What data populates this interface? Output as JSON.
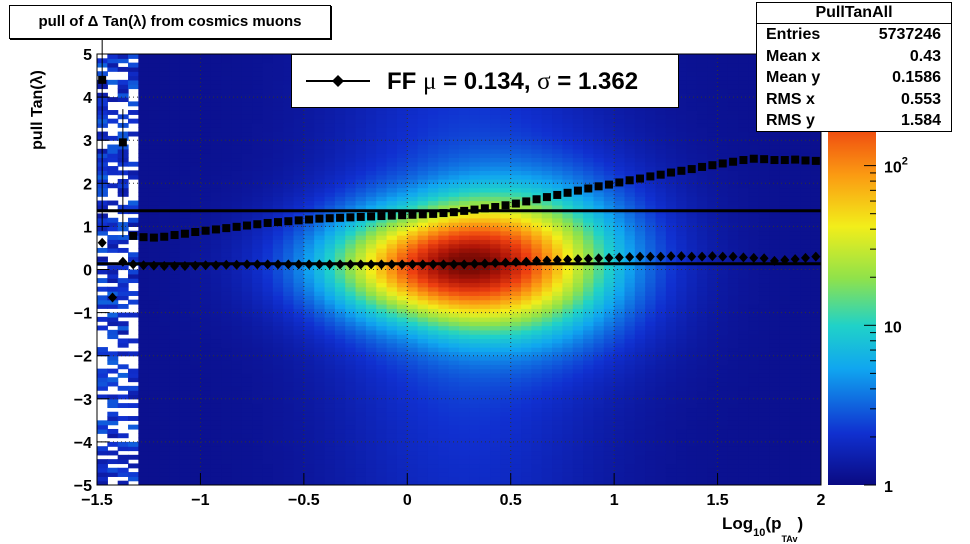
{
  "title": "pull of Δ Tan(λ) from cosmics muons",
  "stats": {
    "name": "PullTanAll",
    "rows": [
      {
        "label": "Entries",
        "value": "5737246"
      },
      {
        "label": "Mean x",
        "value": "0.43"
      },
      {
        "label": "Mean y",
        "value": "0.1586"
      },
      {
        "label": "RMS x",
        "value": "0.553"
      },
      {
        "label": "RMS y",
        "value": "1.584"
      }
    ]
  },
  "legend": {
    "prefix": "FF ",
    "mu_symbol": "μ",
    "mu_text": " =  0.134, ",
    "sigma_symbol": "σ",
    "sigma_text": " =   1.362"
  },
  "axis": {
    "ylabel": "pull Tan(λ)",
    "xlabel_main": "Log",
    "xlabel_sub": "10",
    "xlabel_mid": "(p",
    "xlabel_sub2": "TAv",
    "xlabel_end": ")"
  },
  "colors": {
    "marker": "#000000",
    "frame": "#000000"
  },
  "chart_data": {
    "type": "heatmap",
    "title": "pull of Δ Tan(λ) from cosmics muons",
    "xlabel": "Log10(pTAv)",
    "ylabel": "pull Tan(λ)",
    "xlim": [
      -1.5,
      2
    ],
    "ylim": [
      -5,
      5
    ],
    "x_ticks": [
      -1.5,
      -1,
      -0.5,
      0,
      0.5,
      1,
      1.5,
      2
    ],
    "x_tick_labels": [
      "−1.5",
      "−1",
      "−0.5",
      "0",
      "0.5",
      "1",
      "1.5",
      "2"
    ],
    "y_ticks": [
      -5,
      -4,
      -3,
      -2,
      -1,
      0,
      1,
      2,
      3,
      4,
      5
    ],
    "y_tick_labels": [
      "−5",
      "−4",
      "−3",
      "−2",
      "−1",
      "0",
      "1",
      "2",
      "3",
      "4",
      "5"
    ],
    "grid": true,
    "z_scale": "log",
    "z_range": [
      1,
      500
    ],
    "z_ticks": [
      {
        "value": 1,
        "label": "1"
      },
      {
        "value": 10,
        "label": "10"
      },
      {
        "value": 100,
        "label": "10",
        "exp": "2"
      }
    ],
    "fit_lines": [
      {
        "name": "sigma",
        "y": 1.362
      },
      {
        "name": "mu",
        "y": 0.134
      }
    ],
    "series": [
      {
        "name": "sigma",
        "marker": "square",
        "x": [
          -1.475,
          -1.375,
          -1.325,
          -1.275,
          -1.225,
          -1.175,
          -1.125,
          -1.075,
          -1.025,
          -0.975,
          -0.925,
          -0.875,
          -0.825,
          -0.775,
          -0.725,
          -0.675,
          -0.625,
          -0.575,
          -0.525,
          -0.475,
          -0.425,
          -0.375,
          -0.325,
          -0.275,
          -0.225,
          -0.175,
          -0.125,
          -0.075,
          -0.025,
          0.025,
          0.075,
          0.125,
          0.175,
          0.225,
          0.275,
          0.325,
          0.375,
          0.425,
          0.475,
          0.525,
          0.575,
          0.625,
          0.675,
          0.725,
          0.775,
          0.825,
          0.875,
          0.925,
          0.975,
          1.025,
          1.075,
          1.125,
          1.175,
          1.225,
          1.275,
          1.325,
          1.375,
          1.425,
          1.475,
          1.525,
          1.575,
          1.625,
          1.675,
          1.725,
          1.775,
          1.825,
          1.875,
          1.925,
          1.975
        ],
        "y": [
          4.4,
          2.95,
          0.78,
          0.75,
          0.74,
          0.76,
          0.8,
          0.83,
          0.87,
          0.9,
          0.93,
          0.96,
          0.99,
          1.02,
          1.05,
          1.08,
          1.1,
          1.12,
          1.14,
          1.16,
          1.18,
          1.19,
          1.2,
          1.21,
          1.22,
          1.23,
          1.24,
          1.25,
          1.26,
          1.27,
          1.28,
          1.29,
          1.31,
          1.33,
          1.36,
          1.39,
          1.42,
          1.45,
          1.49,
          1.53,
          1.58,
          1.63,
          1.68,
          1.73,
          1.78,
          1.83,
          1.88,
          1.93,
          1.97,
          2.02,
          2.07,
          2.11,
          2.16,
          2.2,
          2.25,
          2.29,
          2.33,
          2.38,
          2.42,
          2.46,
          2.5,
          2.54,
          2.57,
          2.56,
          2.54,
          2.54,
          2.55,
          2.53,
          2.52
        ]
      },
      {
        "name": "mu",
        "marker": "diamond",
        "x": [
          -1.475,
          -1.425,
          -1.375,
          -1.325,
          -1.275,
          -1.225,
          -1.175,
          -1.125,
          -1.075,
          -1.025,
          -0.975,
          -0.925,
          -0.875,
          -0.825,
          -0.775,
          -0.725,
          -0.675,
          -0.625,
          -0.575,
          -0.525,
          -0.475,
          -0.425,
          -0.375,
          -0.325,
          -0.275,
          -0.225,
          -0.175,
          -0.125,
          -0.075,
          -0.025,
          0.025,
          0.075,
          0.125,
          0.175,
          0.225,
          0.275,
          0.325,
          0.375,
          0.425,
          0.475,
          0.525,
          0.575,
          0.625,
          0.675,
          0.725,
          0.775,
          0.825,
          0.875,
          0.925,
          0.975,
          1.025,
          1.075,
          1.125,
          1.175,
          1.225,
          1.275,
          1.325,
          1.375,
          1.425,
          1.475,
          1.525,
          1.575,
          1.625,
          1.675,
          1.725,
          1.775,
          1.825,
          1.875,
          1.925,
          1.975
        ],
        "y": [
          0.62,
          -0.65,
          0.18,
          0.12,
          0.1,
          0.09,
          0.08,
          0.08,
          0.08,
          0.09,
          0.1,
          0.1,
          0.11,
          0.11,
          0.12,
          0.12,
          0.12,
          0.12,
          0.12,
          0.12,
          0.12,
          0.12,
          0.12,
          0.12,
          0.12,
          0.12,
          0.12,
          0.12,
          0.12,
          0.12,
          0.12,
          0.12,
          0.12,
          0.12,
          0.12,
          0.12,
          0.13,
          0.14,
          0.15,
          0.16,
          0.17,
          0.18,
          0.2,
          0.21,
          0.22,
          0.23,
          0.24,
          0.25,
          0.26,
          0.27,
          0.28,
          0.29,
          0.3,
          0.3,
          0.3,
          0.31,
          0.31,
          0.3,
          0.3,
          0.31,
          0.3,
          0.3,
          0.28,
          0.27,
          0.26,
          0.2,
          0.22,
          0.24,
          0.27,
          0.3
        ]
      }
    ]
  }
}
